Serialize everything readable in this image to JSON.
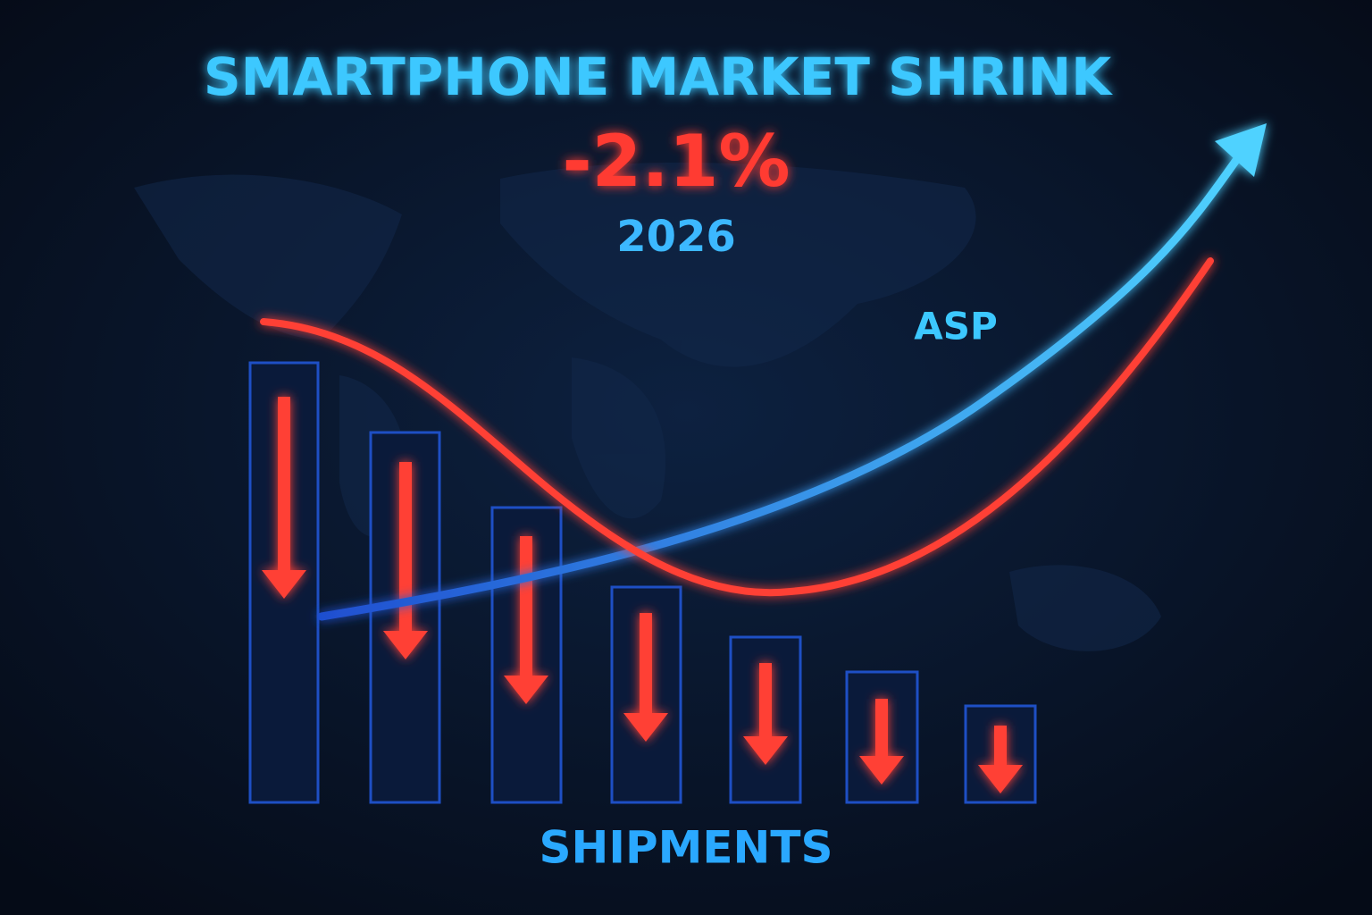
{
  "header": {
    "title": "SMARTPHONE MARKET SHRINK",
    "change": "-2.1%",
    "year": "2026"
  },
  "labels": {
    "asp": "ASP",
    "shipments": "SHIPMENTS"
  }
}
